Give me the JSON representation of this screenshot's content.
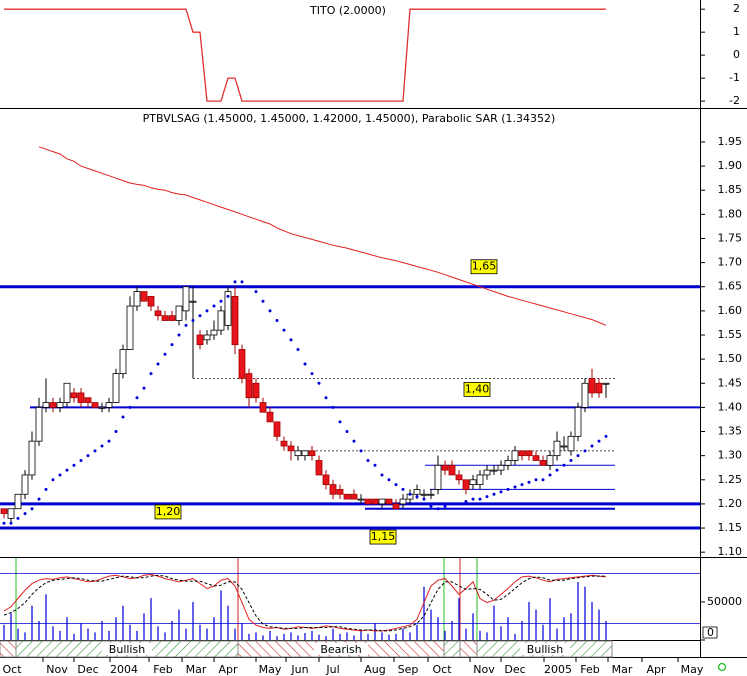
{
  "indicator": {
    "title": "TITO (2.0000)",
    "color": "#e03030",
    "ylim": [
      -2.3,
      2.4
    ],
    "yticks": [
      2,
      1,
      0,
      -1,
      -2
    ],
    "values": [
      2,
      2,
      2,
      2,
      2,
      2,
      2,
      2,
      2,
      2,
      2,
      2,
      2,
      2,
      2,
      2,
      2,
      2,
      2,
      2,
      2,
      2,
      2,
      2,
      2,
      2,
      2,
      1,
      1,
      -2,
      -2,
      -2,
      -1,
      -1,
      -2,
      -2,
      -2,
      -2,
      -2,
      -2,
      -2,
      -2,
      -2,
      -2,
      -2,
      -2,
      -2,
      -2,
      -2,
      -2,
      -2,
      -2,
      -2,
      -2,
      -2,
      -2,
      -2,
      -2,
      2,
      2,
      2,
      2,
      2,
      2,
      2,
      2,
      2,
      2,
      2,
      2,
      2,
      2,
      2,
      2,
      2,
      2,
      2,
      2,
      2,
      2,
      2,
      2,
      2,
      2,
      2,
      2,
      2
    ]
  },
  "chart_data": {
    "type": "candlestick",
    "title": "PTBVLSAG (1.45000, 1.45000, 1.42000, 1.45000), Parabolic SAR (1.34352)",
    "ylim": [
      1.09,
      2.01
    ],
    "yticks": [
      {
        "value": 1.1,
        "label": "1.10"
      },
      {
        "value": 1.15,
        "label": "1.15"
      },
      {
        "value": 1.2,
        "label": "1.20"
      },
      {
        "value": 1.25,
        "label": "1.25"
      },
      {
        "value": 1.3,
        "label": "1.30"
      },
      {
        "value": 1.35,
        "label": "1.35"
      },
      {
        "value": 1.4,
        "label": "1.40"
      },
      {
        "value": 1.45,
        "label": "1.45"
      },
      {
        "value": 1.5,
        "label": "1.50"
      },
      {
        "value": 1.55,
        "label": "1.55"
      },
      {
        "value": 1.6,
        "label": "1.60"
      },
      {
        "value": 1.65,
        "label": "1.65"
      },
      {
        "value": 1.7,
        "label": "1.70"
      },
      {
        "value": 1.75,
        "label": "1.75"
      },
      {
        "value": 1.8,
        "label": "1.80"
      },
      {
        "value": 1.85,
        "label": "1.85"
      },
      {
        "value": 1.9,
        "label": "1.90"
      },
      {
        "value": 1.95,
        "label": "1.95"
      }
    ],
    "up_color": "#ffffff",
    "down_color": "#e8141c",
    "open": [
      1.19,
      1.17,
      1.19,
      1.22,
      1.26,
      1.33,
      1.4,
      1.41,
      1.4,
      1.41,
      1.43,
      1.43,
      1.42,
      1.41,
      1.4,
      1.4,
      1.41,
      1.47,
      1.52,
      1.61,
      1.64,
      1.63,
      1.6,
      1.59,
      1.59,
      1.58,
      1.6,
      1.62,
      1.55,
      1.54,
      1.55,
      1.56,
      1.57,
      1.63,
      1.52,
      1.47,
      1.45,
      1.41,
      1.39,
      1.37,
      1.33,
      1.32,
      1.3,
      1.3,
      1.31,
      1.29,
      1.26,
      1.24,
      1.23,
      1.22,
      1.22,
      1.21,
      1.21,
      1.21,
      1.2,
      1.21,
      1.2,
      1.2,
      1.21,
      1.22,
      1.22,
      1.22,
      1.23,
      1.28,
      1.28,
      1.26,
      1.25,
      1.24,
      1.24,
      1.26,
      1.27,
      1.27,
      1.28,
      1.29,
      1.31,
      1.31,
      1.3,
      1.29,
      1.28,
      1.3,
      1.32,
      1.31,
      1.34,
      1.4,
      1.46,
      1.45,
      1.45
    ],
    "high": [
      1.19,
      1.19,
      1.22,
      1.27,
      1.35,
      1.42,
      1.46,
      1.42,
      1.42,
      1.45,
      1.44,
      1.44,
      1.42,
      1.41,
      1.41,
      1.42,
      1.48,
      1.53,
      1.63,
      1.65,
      1.64,
      1.63,
      1.61,
      1.6,
      1.6,
      1.61,
      1.65,
      1.65,
      1.56,
      1.56,
      1.58,
      1.61,
      1.65,
      1.65,
      1.53,
      1.48,
      1.46,
      1.42,
      1.4,
      1.37,
      1.34,
      1.33,
      1.32,
      1.31,
      1.32,
      1.3,
      1.27,
      1.25,
      1.24,
      1.22,
      1.23,
      1.22,
      1.21,
      1.21,
      1.21,
      1.21,
      1.21,
      1.22,
      1.23,
      1.24,
      1.23,
      1.23,
      1.3,
      1.29,
      1.29,
      1.27,
      1.25,
      1.26,
      1.27,
      1.28,
      1.28,
      1.29,
      1.3,
      1.32,
      1.31,
      1.31,
      1.31,
      1.3,
      1.31,
      1.35,
      1.34,
      1.35,
      1.41,
      1.46,
      1.48,
      1.46,
      1.45
    ],
    "low": [
      1.17,
      1.16,
      1.19,
      1.21,
      1.25,
      1.32,
      1.39,
      1.39,
      1.39,
      1.4,
      1.41,
      1.4,
      1.4,
      1.4,
      1.39,
      1.39,
      1.41,
      1.46,
      1.52,
      1.6,
      1.62,
      1.6,
      1.58,
      1.58,
      1.58,
      1.57,
      1.58,
      1.46,
      1.52,
      1.53,
      1.54,
      1.55,
      1.56,
      1.51,
      1.45,
      1.4,
      1.41,
      1.39,
      1.37,
      1.33,
      1.31,
      1.29,
      1.29,
      1.29,
      1.29,
      1.26,
      1.23,
      1.21,
      1.21,
      1.21,
      1.21,
      1.2,
      1.2,
      1.2,
      1.19,
      1.2,
      1.19,
      1.19,
      1.2,
      1.21,
      1.21,
      1.21,
      1.22,
      1.26,
      1.26,
      1.24,
      1.22,
      1.23,
      1.23,
      1.25,
      1.26,
      1.26,
      1.27,
      1.28,
      1.29,
      1.29,
      1.29,
      1.28,
      1.27,
      1.29,
      1.31,
      1.3,
      1.33,
      1.39,
      1.42,
      1.42,
      1.42
    ],
    "close": [
      1.18,
      1.19,
      1.22,
      1.26,
      1.33,
      1.4,
      1.41,
      1.4,
      1.41,
      1.45,
      1.42,
      1.41,
      1.41,
      1.4,
      1.4,
      1.41,
      1.47,
      1.52,
      1.61,
      1.64,
      1.62,
      1.61,
      1.59,
      1.58,
      1.58,
      1.61,
      1.65,
      1.62,
      1.53,
      1.55,
      1.56,
      1.6,
      1.64,
      1.53,
      1.46,
      1.42,
      1.42,
      1.39,
      1.37,
      1.34,
      1.32,
      1.31,
      1.31,
      1.31,
      1.3,
      1.26,
      1.24,
      1.22,
      1.22,
      1.21,
      1.21,
      1.21,
      1.2,
      1.2,
      1.21,
      1.2,
      1.19,
      1.21,
      1.22,
      1.23,
      1.22,
      1.22,
      1.28,
      1.27,
      1.26,
      1.25,
      1.23,
      1.25,
      1.26,
      1.27,
      1.27,
      1.28,
      1.29,
      1.31,
      1.3,
      1.3,
      1.29,
      1.28,
      1.3,
      1.33,
      1.32,
      1.34,
      1.4,
      1.45,
      1.43,
      1.43,
      1.45
    ],
    "series": [
      {
        "color": "#0000e0",
        "values": [
          1.16,
          1.16,
          1.17,
          1.18,
          1.19,
          1.21,
          1.23,
          1.25,
          1.26,
          1.27,
          1.28,
          1.29,
          1.3,
          1.31,
          1.32,
          1.33,
          1.35,
          1.38,
          1.4,
          1.42,
          1.44,
          1.47,
          1.49,
          1.51,
          1.53,
          1.55,
          1.57,
          1.58,
          1.59,
          1.6,
          1.61,
          1.62,
          1.63,
          1.66,
          1.66,
          1.65,
          1.64,
          1.62,
          1.6,
          1.58,
          1.56,
          1.54,
          1.52,
          1.49,
          1.47,
          1.45,
          1.42,
          1.4,
          1.37,
          1.35,
          1.33,
          1.31,
          1.29,
          1.28,
          1.26,
          1.25,
          1.24,
          1.23,
          1.22,
          1.215,
          1.21,
          1.195,
          1.19,
          1.195,
          1.2,
          1.2,
          1.205,
          1.21,
          1.21,
          1.215,
          1.22,
          1.225,
          1.23,
          1.235,
          1.24,
          1.245,
          1.25,
          1.25,
          1.26,
          1.27,
          1.28,
          1.29,
          1.3,
          1.31,
          1.32,
          1.33,
          1.34
        ]
      },
      {
        "color": "#e02020",
        "values": [
          null,
          null,
          null,
          null,
          null,
          1.94,
          1.935,
          1.93,
          1.925,
          1.915,
          1.91,
          1.9,
          1.895,
          1.89,
          1.885,
          1.88,
          1.875,
          1.87,
          1.865,
          1.862,
          1.86,
          1.855,
          1.852,
          1.85,
          1.845,
          1.842,
          1.84,
          1.835,
          1.83,
          1.825,
          1.82,
          1.815,
          1.81,
          1.805,
          1.8,
          1.795,
          1.79,
          1.785,
          1.78,
          1.772,
          1.766,
          1.76,
          1.756,
          1.752,
          1.748,
          1.744,
          1.74,
          1.736,
          1.733,
          1.73,
          1.726,
          1.722,
          1.718,
          1.714,
          1.71,
          1.707,
          1.704,
          1.7,
          1.696,
          1.692,
          1.688,
          1.684,
          1.68,
          1.675,
          1.67,
          1.665,
          1.66,
          1.655,
          1.65,
          1.645,
          1.64,
          1.635,
          1.63,
          1.626,
          1.622,
          1.618,
          1.614,
          1.61,
          1.606,
          1.602,
          1.598,
          1.594,
          1.59,
          1.586,
          1.582,
          1.576,
          1.57
        ]
      }
    ],
    "levels": [
      {
        "value": 1.65,
        "label": "1,65"
      },
      {
        "value": 1.4,
        "label": "1,40"
      },
      {
        "value": 1.2,
        "label": "1,20"
      },
      {
        "value": 1.15,
        "label": "1,15"
      }
    ],
    "thin_lines": [
      1.19,
      1.28,
      1.23
    ],
    "dotted_lines": [
      1.46,
      1.31
    ],
    "level_color": "#0000d0"
  },
  "lower": {
    "ylim": [
      0,
      100
    ],
    "levels": [
      80,
      20
    ],
    "series": [
      {
        "color": "#e02020",
        "values": [
          35,
          40,
          50,
          60,
          68,
          72,
          74,
          73,
          75,
          76,
          74,
          72,
          70,
          71,
          74,
          77,
          78,
          76,
          74,
          75,
          78,
          79,
          77,
          74,
          72,
          70,
          72,
          74,
          68,
          62,
          65,
          72,
          74,
          65,
          45,
          25,
          18,
          15,
          14,
          15,
          13,
          14,
          16,
          15,
          14,
          15,
          17,
          16,
          14,
          13,
          12,
          11,
          12,
          11,
          11,
          12,
          14,
          16,
          18,
          25,
          45,
          65,
          72,
          74,
          65,
          55,
          62,
          70,
          50,
          45,
          48,
          55,
          62,
          70,
          76,
          77,
          75,
          72,
          70,
          73,
          74,
          75,
          76,
          77,
          78,
          77,
          76
        ]
      },
      {
        "color": "#000000",
        "dashed": true,
        "values": [
          30,
          33,
          38,
          45,
          55,
          63,
          69,
          72,
          73,
          74,
          75,
          74,
          72,
          71,
          71,
          73,
          75,
          77,
          76,
          75,
          75,
          77,
          78,
          77,
          74,
          72,
          71,
          71,
          71,
          68,
          65,
          66,
          70,
          70,
          61,
          45,
          29,
          19,
          16,
          15,
          14,
          14,
          14,
          15,
          15,
          15,
          15,
          16,
          16,
          14,
          13,
          12,
          12,
          12,
          11,
          11,
          12,
          14,
          16,
          20,
          29,
          45,
          61,
          70,
          70,
          65,
          61,
          62,
          61,
          55,
          48,
          49,
          55,
          62,
          69,
          74,
          76,
          75,
          72,
          72,
          72,
          74,
          75,
          76,
          77,
          77,
          77
        ]
      }
    ]
  },
  "volume": {
    "color": "#2020e0",
    "ylim": [
      0,
      109000
    ],
    "yticks": [
      0,
      50000
    ],
    "values": [
      20000,
      35000,
      15000,
      10000,
      45000,
      25000,
      60000,
      18000,
      12000,
      30000,
      8000,
      22000,
      15000,
      10000,
      25000,
      12000,
      30000,
      45000,
      20000,
      12000,
      35000,
      55000,
      18000,
      10000,
      25000,
      40000,
      15000,
      50000,
      20000,
      15000,
      30000,
      65000,
      45000,
      15000,
      22000,
      8000,
      10000,
      6000,
      12000,
      5000,
      8000,
      10000,
      6000,
      9000,
      12000,
      7000,
      5000,
      15000,
      8000,
      10000,
      6000,
      12000,
      8000,
      22000,
      10000,
      7000,
      8000,
      15000,
      10000,
      20000,
      70000,
      40000,
      30000,
      12000,
      25000,
      55000,
      15000,
      35000,
      12000,
      10000,
      45000,
      18000,
      30000,
      8000,
      25000,
      50000,
      40000,
      20000,
      55000,
      15000,
      30000,
      35000,
      76000,
      70000,
      50000,
      40000,
      25000
    ]
  },
  "trend": {
    "labels": [
      "Bullish",
      "Bearish",
      "Bullish"
    ]
  },
  "x_labels": [
    "Oct",
    "Nov",
    "Dec",
    "2004",
    "Feb",
    "Mar",
    "Apr",
    "May",
    "Jun",
    "Jul",
    "Aug",
    "Sep",
    "Oct",
    "Nov",
    "Dec",
    "2005",
    "Feb",
    "Mar",
    "Apr",
    "May"
  ]
}
